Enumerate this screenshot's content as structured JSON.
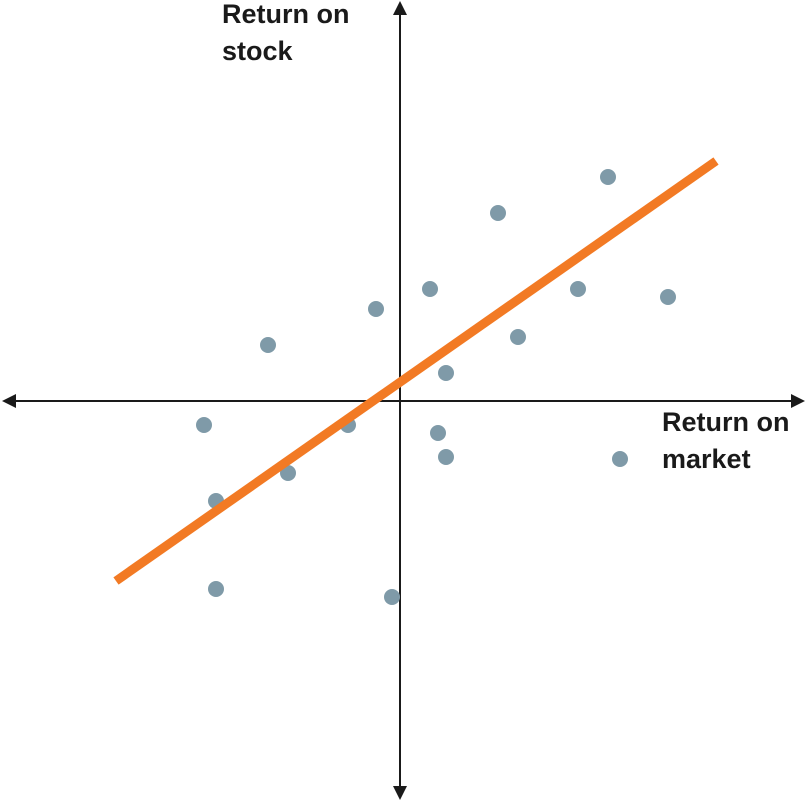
{
  "chart_data": {
    "type": "scatter",
    "title": "",
    "xlabel": [
      "Return on",
      "market"
    ],
    "ylabel": [
      "Return on",
      "stock"
    ],
    "xlim": [
      -10,
      10
    ],
    "ylim": [
      -10,
      10
    ],
    "grid": false,
    "legend": "none",
    "axes_style": "crossing-at-origin-with-arrows",
    "points": [
      {
        "x": -4.9,
        "y": -0.6
      },
      {
        "x": -4.6,
        "y": -2.5
      },
      {
        "x": -4.6,
        "y": -4.7
      },
      {
        "x": -3.3,
        "y": 1.4
      },
      {
        "x": -2.8,
        "y": -1.8
      },
      {
        "x": -1.3,
        "y": -0.6
      },
      {
        "x": -0.6,
        "y": 2.3
      },
      {
        "x": -0.2,
        "y": -4.9
      },
      {
        "x": 0.75,
        "y": 2.8
      },
      {
        "x": 0.95,
        "y": -0.8
      },
      {
        "x": 1.15,
        "y": -1.4
      },
      {
        "x": 1.15,
        "y": 0.7
      },
      {
        "x": 2.45,
        "y": 4.7
      },
      {
        "x": 2.95,
        "y": 1.6
      },
      {
        "x": 4.45,
        "y": 2.8
      },
      {
        "x": 5.2,
        "y": 5.6
      },
      {
        "x": 5.5,
        "y": -1.45
      },
      {
        "x": 6.7,
        "y": 2.6
      }
    ],
    "trendline": {
      "x": [
        -7.1,
        7.9
      ],
      "y": [
        -4.5,
        6.0
      ]
    },
    "colors": {
      "points": "#7f9aa8",
      "trendline": "#f27a24",
      "axes": "#1a1a1a"
    }
  }
}
